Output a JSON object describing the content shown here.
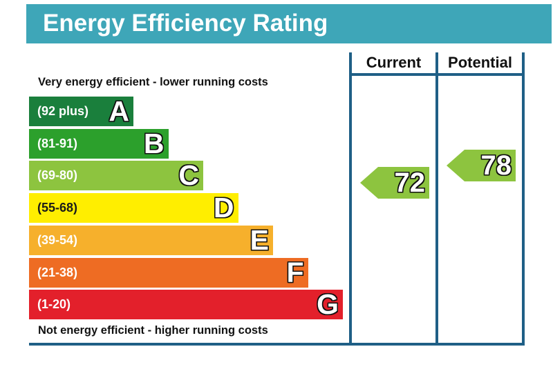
{
  "header": {
    "title": "Energy Efficiency Rating"
  },
  "captions": {
    "top": "Very energy efficient - lower running costs",
    "bottom": "Not energy efficient - higher running costs"
  },
  "columns": {
    "current": "Current",
    "potential": "Potential"
  },
  "colors": {
    "header": "#3ea6b8",
    "frame": "#1f5f86",
    "A": "#1a7f3c",
    "B": "#2ca02c",
    "C": "#8dc43f",
    "D": "#ffee00",
    "E": "#f6b02c",
    "F": "#ee6c23",
    "G": "#e3202b"
  },
  "chart_data": {
    "type": "bar",
    "title": "Energy Efficiency Rating",
    "bands": [
      {
        "letter": "A",
        "range": "(92 plus)",
        "color": "#1a7f3c"
      },
      {
        "letter": "B",
        "range": "(81-91)",
        "color": "#2ca02c"
      },
      {
        "letter": "C",
        "range": "(69-80)",
        "color": "#8dc43f"
      },
      {
        "letter": "D",
        "range": "(55-68)",
        "color": "#ffee00"
      },
      {
        "letter": "E",
        "range": "(39-54)",
        "color": "#f6b02c"
      },
      {
        "letter": "F",
        "range": "(21-38)",
        "color": "#ee6c23"
      },
      {
        "letter": "G",
        "range": "(1-20)",
        "color": "#e3202b"
      }
    ],
    "ratings": {
      "current": {
        "value": "72",
        "band": "C",
        "color": "#8dc43f"
      },
      "potential": {
        "value": "78",
        "band": "C",
        "color": "#8dc43f"
      }
    }
  }
}
